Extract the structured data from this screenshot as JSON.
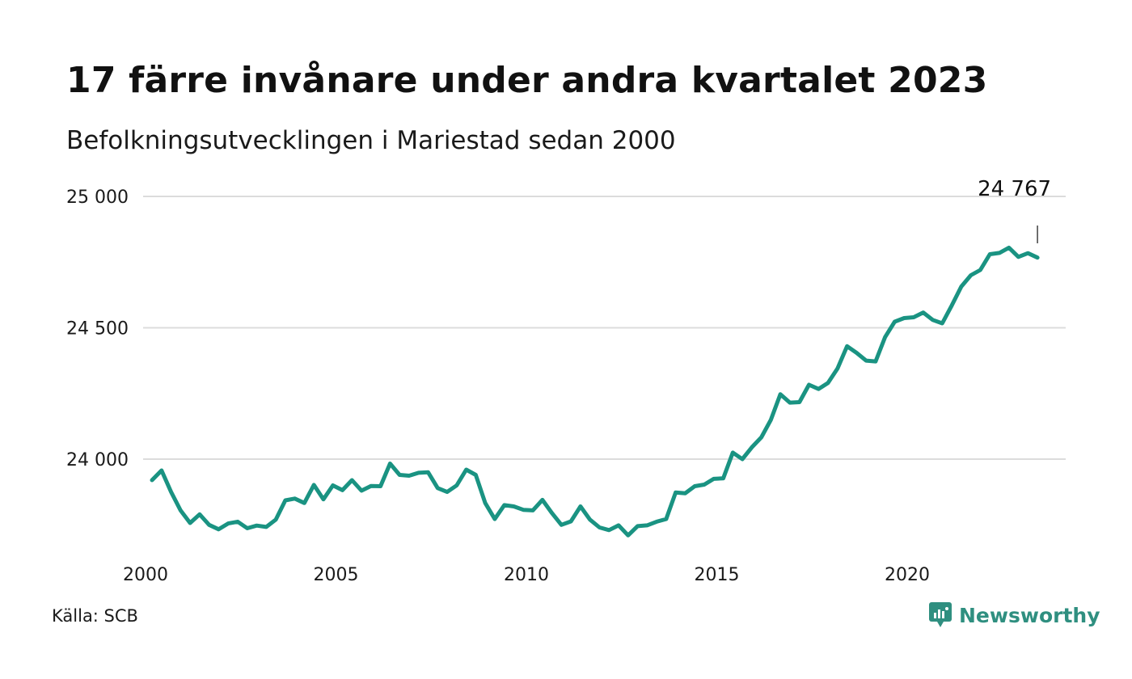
{
  "chart_data": {
    "type": "line",
    "title": "17 färre invånare under andra kvartalet 2023",
    "subtitle": "Befolkningsutvecklingen i Mariestad sedan 2000",
    "y_ticks": [
      {
        "value": 24000,
        "label": "24 000"
      },
      {
        "value": 24500,
        "label": "24 500"
      },
      {
        "value": 25000,
        "label": "25 000"
      }
    ],
    "x_ticks": [
      {
        "value": 2000,
        "label": "2000"
      },
      {
        "value": 2005,
        "label": "2005"
      },
      {
        "value": 2010,
        "label": "2010"
      },
      {
        "value": 2015,
        "label": "2015"
      },
      {
        "value": 2020,
        "label": "2020"
      }
    ],
    "xlim": [
      2000,
      2024
    ],
    "ylim": [
      23700,
      25000
    ],
    "grid": "horizontal",
    "line_color": "#1a9382",
    "x": [
      2000,
      2000.25,
      2000.5,
      2000.75,
      2001,
      2001.25,
      2001.5,
      2001.75,
      2002,
      2002.25,
      2002.5,
      2002.75,
      2003,
      2003.25,
      2003.5,
      2003.75,
      2004,
      2004.25,
      2004.5,
      2004.75,
      2005,
      2005.25,
      2005.5,
      2005.75,
      2006,
      2006.25,
      2006.5,
      2006.75,
      2007,
      2007.25,
      2007.5,
      2007.75,
      2008,
      2008.25,
      2008.5,
      2008.75,
      2009,
      2009.25,
      2009.5,
      2009.75,
      2010,
      2010.25,
      2010.5,
      2010.75,
      2011,
      2011.25,
      2011.5,
      2011.75,
      2012,
      2012.25,
      2012.5,
      2012.75,
      2013,
      2013.25,
      2013.5,
      2013.75,
      2014,
      2014.25,
      2014.5,
      2014.75,
      2015,
      2015.25,
      2015.5,
      2015.75,
      2016,
      2016.25,
      2016.5,
      2016.75,
      2017,
      2017.25,
      2017.5,
      2017.75,
      2018,
      2018.25,
      2018.5,
      2018.75,
      2019,
      2019.25,
      2019.5,
      2019.75,
      2020,
      2020.25,
      2020.5,
      2020.75,
      2021,
      2021.25,
      2021.5,
      2021.75,
      2022,
      2022.25,
      2022.5,
      2022.75,
      2023,
      2023.25
    ],
    "values": [
      23920,
      23957,
      23875,
      23805,
      23757,
      23790,
      23750,
      23733,
      23755,
      23762,
      23737,
      23747,
      23742,
      23770,
      23843,
      23850,
      23833,
      23902,
      23847,
      23900,
      23882,
      23920,
      23880,
      23898,
      23897,
      23983,
      23940,
      23937,
      23948,
      23950,
      23890,
      23875,
      23900,
      23960,
      23940,
      23833,
      23772,
      23825,
      23820,
      23807,
      23805,
      23845,
      23795,
      23750,
      23763,
      23820,
      23770,
      23740,
      23730,
      23748,
      23710,
      23745,
      23748,
      23762,
      23772,
      23873,
      23870,
      23897,
      23903,
      23925,
      23927,
      24025,
      24000,
      24045,
      24083,
      24150,
      24247,
      24215,
      24217,
      24283,
      24267,
      24290,
      24345,
      24430,
      24405,
      24375,
      24372,
      24465,
      24523,
      24537,
      24540,
      24558,
      24530,
      24517,
      24585,
      24657,
      24700,
      24720,
      24780,
      24785,
      24805,
      24770,
      24784,
      24767
    ],
    "last_label": "24 767"
  },
  "footer": {
    "source": "Källa: SCB",
    "brand": "Newsworthy"
  },
  "colors": {
    "line": "#1a9382",
    "grid": "#dcdcdc",
    "brand": "#2f8f80"
  }
}
